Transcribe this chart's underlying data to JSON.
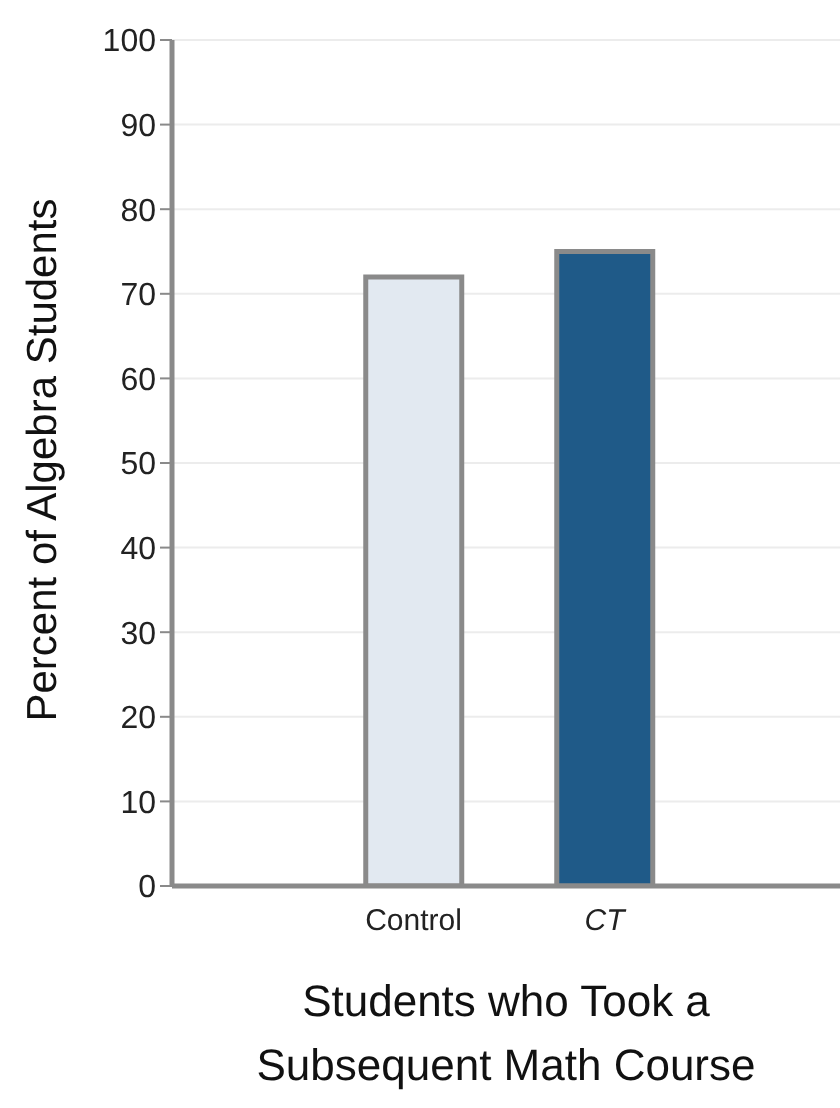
{
  "chart_data": {
    "type": "bar",
    "xlabel": "Students who Took a Subsequent Math Course",
    "ylabel": "Percent of Algebra Students",
    "categories": [
      "Control",
      "CT"
    ],
    "values": [
      72,
      75
    ],
    "colors": [
      "#e2e9f1",
      "#1f5a88"
    ],
    "ylim": [
      0,
      100
    ],
    "yticks": [
      0,
      10,
      20,
      30,
      40,
      50,
      60,
      70,
      80,
      90,
      100
    ],
    "grid": "y",
    "legend": false
  }
}
